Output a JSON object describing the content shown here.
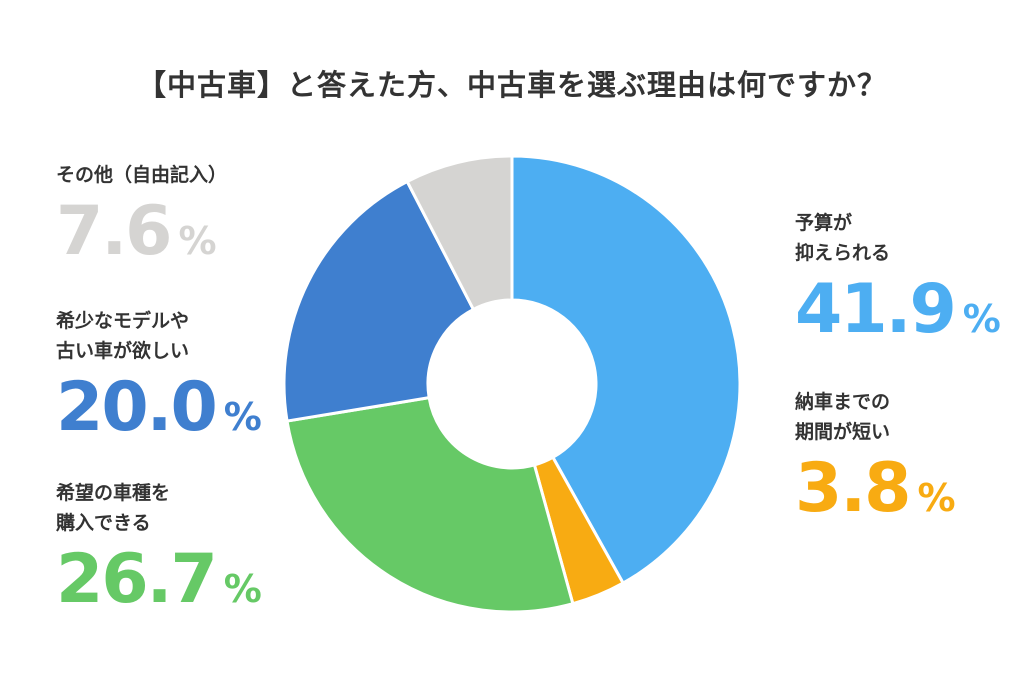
{
  "chart_data": {
    "type": "pie",
    "title": "【中古車】と答えた方、中古車を選ぶ理由は何ですか？",
    "unit": "%",
    "slices": [
      {
        "label_lines": [
          "予算が",
          "抑えられる"
        ],
        "value": 41.9,
        "value_text": "41.9",
        "color": "#4daef2"
      },
      {
        "label_lines": [
          "納車までの",
          "期間が短い"
        ],
        "value": 3.8,
        "value_text": "3.8",
        "color": "#f8ab12"
      },
      {
        "label_lines": [
          "希望の車種を",
          "購入できる"
        ],
        "value": 26.7,
        "value_text": "26.7",
        "color": "#66c966"
      },
      {
        "label_lines": [
          "希少なモデルや",
          "古い車が欲しい"
        ],
        "value": 20.0,
        "value_text": "20.0",
        "color": "#3f7fcf"
      },
      {
        "label_lines": [
          "その他（自由記入）"
        ],
        "value": 7.6,
        "value_text": "7.6",
        "color": "#d5d4d2"
      }
    ]
  }
}
